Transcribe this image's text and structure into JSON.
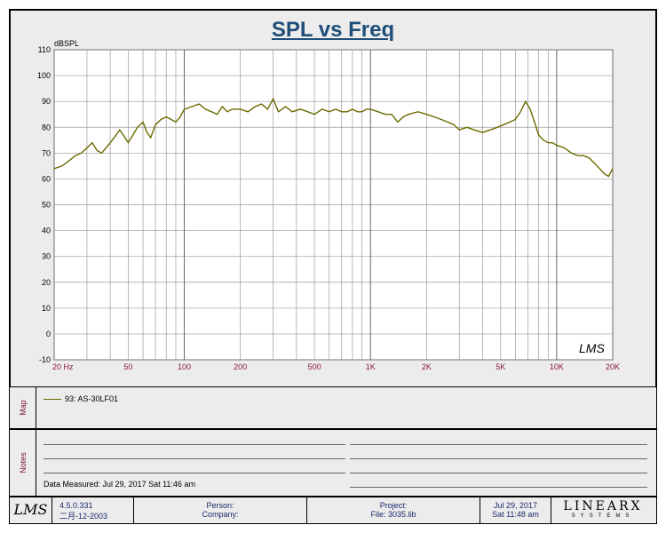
{
  "chart_data": {
    "type": "line",
    "title": "SPL vs Freq",
    "ylabel": "dBSPL",
    "ylim": [
      -10,
      110
    ],
    "xlim": [
      20,
      20000
    ],
    "xscale": "log",
    "yticks": [
      110,
      100,
      90,
      80,
      70,
      60,
      50,
      40,
      30,
      20,
      10,
      0,
      -10
    ],
    "xticks": [
      {
        "value": 20,
        "label": "20 Hz"
      },
      {
        "value": 50,
        "label": "50"
      },
      {
        "value": 100,
        "label": "100"
      },
      {
        "value": 200,
        "label": "200"
      },
      {
        "value": 500,
        "label": "500"
      },
      {
        "value": 1000,
        "label": "1K"
      },
      {
        "value": 2000,
        "label": "2K"
      },
      {
        "value": 5000,
        "label": "5K"
      },
      {
        "value": 10000,
        "label": "10K"
      },
      {
        "value": 20000,
        "label": "20K"
      }
    ],
    "grid": true,
    "watermark": "LMS",
    "series": [
      {
        "name": "93: AS-30LF01",
        "color": "#6b6b00",
        "x": [
          20,
          22,
          24,
          26,
          28,
          30,
          32,
          34,
          36,
          38,
          40,
          42,
          45,
          48,
          50,
          53,
          56,
          60,
          63,
          66,
          70,
          75,
          80,
          85,
          90,
          95,
          100,
          110,
          120,
          130,
          140,
          150,
          160,
          170,
          180,
          200,
          220,
          240,
          260,
          280,
          300,
          320,
          350,
          380,
          420,
          460,
          500,
          550,
          600,
          650,
          700,
          750,
          800,
          850,
          900,
          950,
          1000,
          1100,
          1200,
          1300,
          1400,
          1500,
          1600,
          1800,
          2000,
          2200,
          2400,
          2600,
          2800,
          3000,
          3300,
          3600,
          4000,
          4400,
          4800,
          5200,
          5600,
          6000,
          6400,
          6800,
          7200,
          7600,
          8000,
          8500,
          9000,
          9500,
          10000,
          11000,
          12000,
          13000,
          14000,
          15000,
          16000,
          17000,
          18000,
          19000,
          20000
        ],
        "y": [
          64,
          65,
          67,
          69,
          70,
          72,
          74,
          71,
          70,
          72,
          74,
          76,
          79,
          76,
          74,
          77,
          80,
          82,
          78,
          76,
          81,
          83,
          84,
          83,
          82,
          84,
          87,
          88,
          89,
          87,
          86,
          85,
          88,
          86,
          87,
          87,
          86,
          88,
          89,
          87,
          91,
          86,
          88,
          86,
          87,
          86,
          85,
          87,
          86,
          87,
          86,
          86,
          87,
          86,
          86,
          87,
          87,
          86,
          85,
          85,
          82,
          84,
          85,
          86,
          85,
          84,
          83,
          82,
          81,
          79,
          80,
          79,
          78,
          79,
          80,
          81,
          82,
          83,
          86,
          90,
          87,
          82,
          77,
          75,
          74,
          74,
          73,
          72,
          70,
          69,
          69,
          68,
          66,
          64,
          62,
          61,
          64
        ]
      }
    ]
  },
  "legend": {
    "panel_label": "Map",
    "entry": "93: AS-30LF01"
  },
  "notes": {
    "panel_label": "Notes",
    "measured": "Data Measured: Jul 29, 2017  Sat 11:46 am"
  },
  "footer": {
    "logo": "LMS",
    "version": "4.5.0.331",
    "build_date": "二月-12-2003",
    "person": "Person:",
    "company": "Company:",
    "project": "Project:",
    "file": "File: 3035.lib",
    "date": "Jul 29, 2017",
    "time": "Sat 11:48 am",
    "brand": "LINEARX",
    "brand_sub": "SYSTEMS"
  }
}
